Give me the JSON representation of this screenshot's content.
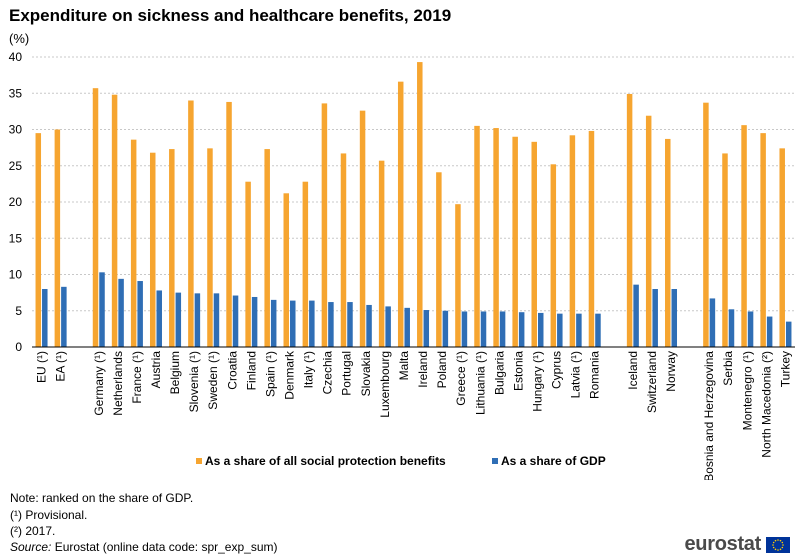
{
  "title": "Expenditure on sickness and healthcare benefits, 2019",
  "unit_label": "(%)",
  "chart_data": {
    "type": "bar",
    "title": "Expenditure on sickness and healthcare benefits, 2019",
    "ylabel": "(%)",
    "xlabel": "",
    "ylim": [
      0,
      40
    ],
    "yticks": [
      0,
      5,
      10,
      15,
      20,
      25,
      30,
      35,
      40
    ],
    "grid": true,
    "legend_position": "bottom",
    "categories": [
      "EU (¹)",
      "EA (¹)",
      "",
      "Germany (¹)",
      "Netherlands",
      "France (¹)",
      "Austria",
      "Belgium",
      "Slovenia (¹)",
      "Sweden (¹)",
      "Croatia",
      "Finland",
      "Spain (¹)",
      "Denmark",
      "Italy (¹)",
      "Czechia",
      "Portugal",
      "Slovakia",
      "Luxembourg",
      "Malta",
      "Ireland",
      "Poland",
      "Greece (¹)",
      "Lithuania (¹)",
      "Bulgaria",
      "Estonia",
      "Hungary (¹)",
      "Cyprus",
      "Latvia (¹)",
      "Romania",
      "",
      "Iceland",
      "Switzerland",
      "Norway",
      "",
      "Bosnia and Herzegovina",
      "Serbia",
      "Montenegro (¹)",
      "North Macedonia (²)",
      "Turkey"
    ],
    "series": [
      {
        "name": "As a share of all social protection benefits",
        "color": "#F6A530",
        "values": [
          29.5,
          30.0,
          null,
          35.7,
          34.8,
          28.6,
          26.8,
          27.3,
          34.0,
          27.4,
          33.8,
          22.8,
          27.3,
          21.2,
          22.8,
          33.6,
          26.7,
          32.6,
          25.7,
          36.6,
          39.3,
          24.1,
          19.7,
          30.5,
          30.2,
          29.0,
          28.3,
          25.2,
          29.2,
          29.8,
          null,
          34.9,
          31.9,
          28.7,
          null,
          33.7,
          26.7,
          30.6,
          29.5,
          27.4
        ]
      },
      {
        "name": "As a share of GDP",
        "color": "#2F6EB5",
        "values": [
          8.0,
          8.3,
          null,
          10.3,
          9.4,
          9.1,
          7.8,
          7.5,
          7.4,
          7.4,
          7.1,
          6.9,
          6.5,
          6.4,
          6.4,
          6.2,
          6.2,
          5.8,
          5.6,
          5.4,
          5.1,
          5.0,
          4.9,
          4.9,
          4.9,
          4.8,
          4.7,
          4.6,
          4.6,
          4.6,
          null,
          8.6,
          8.0,
          8.0,
          null,
          6.7,
          5.2,
          4.9,
          4.2,
          3.5
        ]
      }
    ]
  },
  "legend": {
    "share_social": "As a share of all social protection benefits",
    "share_gdp": "As a share of GDP"
  },
  "notes": {
    "ranked": "Note: ranked on the share of GDP.",
    "provisional": "(¹) Provisional.",
    "year_2017": "(²) 2017.",
    "source_label": "Source:",
    "source_text": " Eurostat (online data code: spr_exp_sum)"
  },
  "logo": {
    "text": "eurostat",
    "flag_blue": "#003399",
    "flag_star": "#FFCC00"
  }
}
